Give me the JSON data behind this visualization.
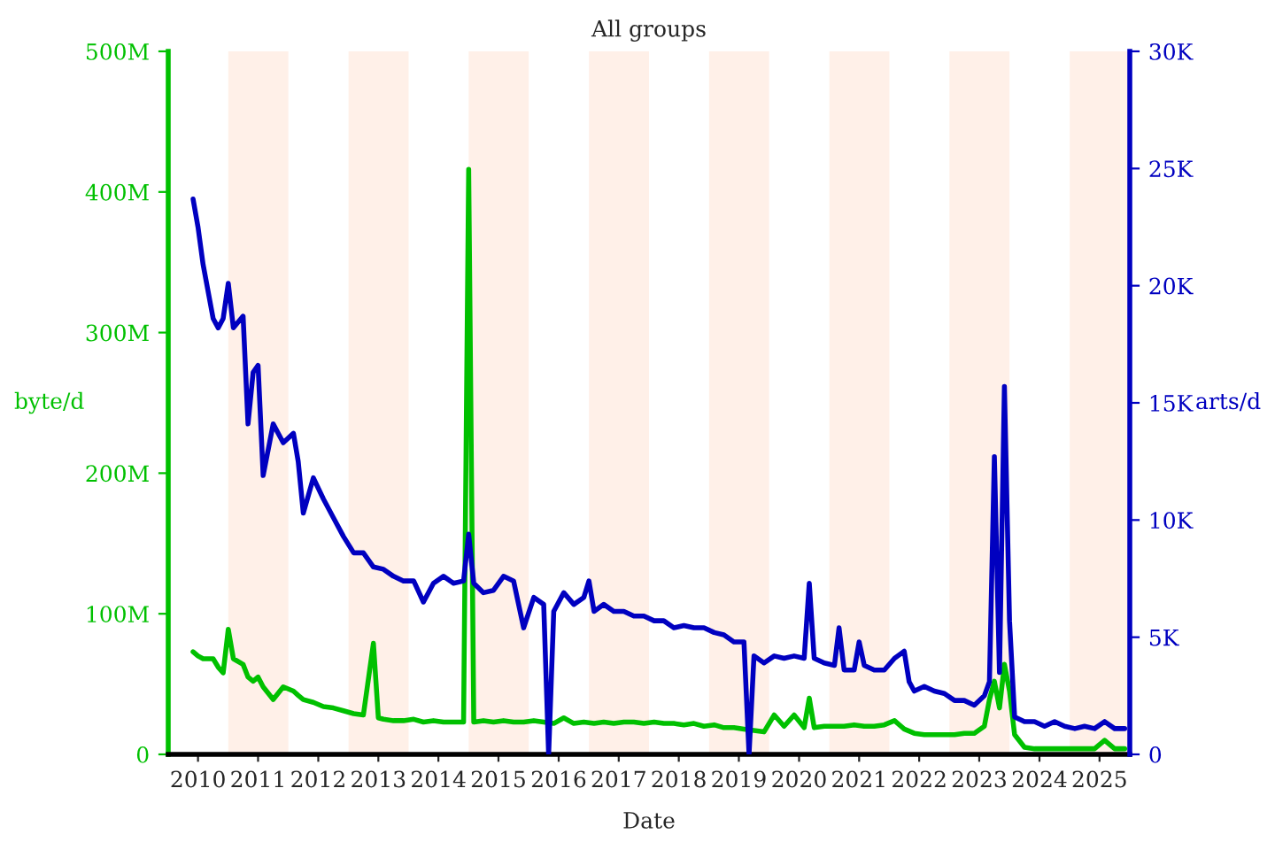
{
  "chart_data": {
    "type": "line",
    "title": "All groups",
    "xlabel": "Date",
    "ylabel": "byte/d",
    "y2label": "arts/d",
    "xlim": [
      "2010-01-01",
      "2026-01-01"
    ],
    "xticks": [
      {
        "value": "2010-07-01",
        "label": "2010"
      },
      {
        "value": "2011-07-01",
        "label": "2011"
      },
      {
        "value": "2012-07-01",
        "label": "2012"
      },
      {
        "value": "2013-07-01",
        "label": "2013"
      },
      {
        "value": "2014-07-01",
        "label": "2014"
      },
      {
        "value": "2015-07-01",
        "label": "2015"
      },
      {
        "value": "2016-07-01",
        "label": "2016"
      },
      {
        "value": "2017-07-01",
        "label": "2017"
      },
      {
        "value": "2018-07-01",
        "label": "2018"
      },
      {
        "value": "2019-07-01",
        "label": "2019"
      },
      {
        "value": "2020-07-01",
        "label": "2020"
      },
      {
        "value": "2021-07-01",
        "label": "2021"
      },
      {
        "value": "2022-07-01",
        "label": "2022"
      },
      {
        "value": "2023-07-01",
        "label": "2023"
      },
      {
        "value": "2024-07-01",
        "label": "2024"
      },
      {
        "value": "2025-07-01",
        "label": "2025"
      }
    ],
    "ylim": [
      0,
      500000000
    ],
    "yticks": [
      0,
      {
        "value": 100000000,
        "label": "100M"
      },
      {
        "value": 200000000,
        "label": "200M"
      },
      {
        "value": 300000000,
        "label": "300M"
      },
      {
        "value": 400000000,
        "label": "400M"
      },
      {
        "value": 500000000,
        "label": "500M"
      }
    ],
    "y2lim": [
      0,
      30000
    ],
    "y2ticks": [
      0,
      {
        "value": 5000,
        "label": "5K"
      },
      {
        "value": 10000,
        "label": "10K"
      },
      {
        "value": 15000,
        "label": "15K"
      },
      {
        "value": 20000,
        "label": "20K"
      },
      {
        "value": 25000,
        "label": "25K"
      },
      {
        "value": 30000,
        "label": "30K"
      }
    ],
    "grid": false,
    "legend": false,
    "bands": [
      {
        "axis": "x",
        "from": "2011-01-01",
        "to": "2012-01-01",
        "color": "#fff0e8"
      },
      {
        "axis": "x",
        "from": "2013-01-01",
        "to": "2014-01-01",
        "color": "#fff0e8"
      },
      {
        "axis": "x",
        "from": "2015-01-01",
        "to": "2016-01-01",
        "color": "#fff0e8"
      },
      {
        "axis": "x",
        "from": "2017-01-01",
        "to": "2018-01-01",
        "color": "#fff0e8"
      },
      {
        "axis": "x",
        "from": "2019-01-01",
        "to": "2020-01-01",
        "color": "#fff0e8"
      },
      {
        "axis": "x",
        "from": "2021-01-01",
        "to": "2022-01-01",
        "color": "#fff0e8"
      },
      {
        "axis": "x",
        "from": "2023-01-01",
        "to": "2024-01-01",
        "color": "#fff0e8"
      },
      {
        "axis": "x",
        "from": "2025-01-01",
        "to": "2026-01-01",
        "color": "#fff0e8"
      }
    ],
    "series": [
      {
        "color": "#00c000",
        "x": [
          "2010-06",
          "2010-07",
          "2010-08",
          "2010-10",
          "2010-11",
          "2010-12",
          "2011-01",
          "2011-02",
          "2011-04",
          "2011-05",
          "2011-06",
          "2011-07",
          "2011-08",
          "2011-10",
          "2011-12",
          "2012-02",
          "2012-03",
          "2012-04",
          "2012-06",
          "2012-08",
          "2012-10",
          "2012-12",
          "2013-02",
          "2013-04",
          "2013-06",
          "2013-07",
          "2013-08",
          "2013-10",
          "2013-12",
          "2014-02",
          "2014-04",
          "2014-06",
          "2014-08",
          "2014-10",
          "2014-12",
          "2015-01",
          "2015-02",
          "2015-04",
          "2015-06",
          "2015-08",
          "2015-10",
          "2015-12",
          "2016-02",
          "2016-04",
          "2016-06",
          "2016-08",
          "2016-10",
          "2016-12",
          "2017-02",
          "2017-04",
          "2017-06",
          "2017-08",
          "2017-10",
          "2017-12",
          "2018-02",
          "2018-04",
          "2018-06",
          "2018-08",
          "2018-10",
          "2018-12",
          "2019-02",
          "2019-04",
          "2019-06",
          "2019-08",
          "2019-10",
          "2019-12",
          "2020-02",
          "2020-04",
          "2020-06",
          "2020-08",
          "2020-09",
          "2020-10",
          "2020-12",
          "2021-02",
          "2021-04",
          "2021-06",
          "2021-08",
          "2021-10",
          "2021-12",
          "2022-02",
          "2022-04",
          "2022-06",
          "2022-08",
          "2022-10",
          "2022-12",
          "2023-02",
          "2023-04",
          "2023-06",
          "2023-08",
          "2023-09",
          "2023-10",
          "2023-11",
          "2023-12",
          "2024-01",
          "2024-02",
          "2024-04",
          "2024-06",
          "2024-08",
          "2024-10",
          "2024-12",
          "2025-02",
          "2025-04",
          "2025-06",
          "2025-08",
          "2025-10",
          "2025-12"
        ],
        "values": [
          73000000,
          70000000,
          68000000,
          68000000,
          62000000,
          58000000,
          89000000,
          68000000,
          64000000,
          55000000,
          52000000,
          55000000,
          48000000,
          39000000,
          48000000,
          45000000,
          42000000,
          39000000,
          37000000,
          34000000,
          33000000,
          31000000,
          29000000,
          28000000,
          79000000,
          26000000,
          25000000,
          24000000,
          24000000,
          25000000,
          23000000,
          24000000,
          23000000,
          23000000,
          23000000,
          416000000,
          23000000,
          24000000,
          23000000,
          24000000,
          23000000,
          23000000,
          24000000,
          23000000,
          22000000,
          26000000,
          22000000,
          23000000,
          22000000,
          23000000,
          22000000,
          23000000,
          23000000,
          22000000,
          23000000,
          22000000,
          22000000,
          21000000,
          22000000,
          20000000,
          21000000,
          19000000,
          19000000,
          18000000,
          17000000,
          16000000,
          28000000,
          20000000,
          28000000,
          19000000,
          40000000,
          19000000,
          20000000,
          20000000,
          20000000,
          21000000,
          20000000,
          20000000,
          21000000,
          24000000,
          18000000,
          15000000,
          14000000,
          14000000,
          14000000,
          14000000,
          15000000,
          15000000,
          20000000,
          39000000,
          52000000,
          33000000,
          64000000,
          45000000,
          14000000,
          5000000,
          4000000,
          4000000,
          4000000,
          4000000,
          4000000,
          4000000,
          4000000,
          10000000,
          4000000,
          4000000
        ]
      },
      {
        "color": "#0000c0",
        "axis": "y2",
        "x": [
          "2010-06",
          "2010-07",
          "2010-08",
          "2010-10",
          "2010-11",
          "2010-12",
          "2011-01",
          "2011-02",
          "2011-04",
          "2011-05",
          "2011-06",
          "2011-07",
          "2011-08",
          "2011-10",
          "2011-12",
          "2012-02",
          "2012-03",
          "2012-04",
          "2012-06",
          "2012-08",
          "2012-10",
          "2012-12",
          "2013-02",
          "2013-04",
          "2013-06",
          "2013-08",
          "2013-10",
          "2013-12",
          "2014-02",
          "2014-04",
          "2014-06",
          "2014-08",
          "2014-10",
          "2014-12",
          "2015-01",
          "2015-02",
          "2015-04",
          "2015-06",
          "2015-08",
          "2015-10",
          "2015-12",
          "2016-02",
          "2016-04",
          "2016-05",
          "2016-06",
          "2016-08",
          "2016-10",
          "2016-12",
          "2017-01",
          "2017-02",
          "2017-04",
          "2017-06",
          "2017-08",
          "2017-10",
          "2017-12",
          "2018-02",
          "2018-04",
          "2018-06",
          "2018-08",
          "2018-10",
          "2018-12",
          "2019-02",
          "2019-04",
          "2019-06",
          "2019-08",
          "2019-09",
          "2019-10",
          "2019-12",
          "2020-02",
          "2020-04",
          "2020-06",
          "2020-08",
          "2020-09",
          "2020-10",
          "2020-12",
          "2021-02",
          "2021-03",
          "2021-04",
          "2021-06",
          "2021-07",
          "2021-08",
          "2021-10",
          "2021-12",
          "2022-02",
          "2022-04",
          "2022-05",
          "2022-06",
          "2022-08",
          "2022-10",
          "2022-12",
          "2023-02",
          "2023-04",
          "2023-06",
          "2023-08",
          "2023-09",
          "2023-10",
          "2023-11",
          "2023-12",
          "2024-01",
          "2024-02",
          "2024-04",
          "2024-06",
          "2024-08",
          "2024-10",
          "2024-12",
          "2025-02",
          "2025-04",
          "2025-06",
          "2025-08",
          "2025-10",
          "2025-12"
        ],
        "values": [
          23700,
          22500,
          20900,
          18600,
          18200,
          18600,
          20100,
          18200,
          18700,
          14100,
          16300,
          16600,
          11900,
          14100,
          13300,
          13700,
          12500,
          10300,
          11800,
          10900,
          10100,
          9300,
          8600,
          8600,
          8000,
          7900,
          7600,
          7400,
          7400,
          6500,
          7300,
          7600,
          7300,
          7400,
          9400,
          7300,
          6900,
          7000,
          7600,
          7400,
          5400,
          6700,
          6400,
          0,
          6100,
          6900,
          6400,
          6700,
          7400,
          6100,
          6400,
          6100,
          6100,
          5900,
          5900,
          5700,
          5700,
          5400,
          5500,
          5400,
          5400,
          5200,
          5100,
          4800,
          4800,
          0,
          4200,
          3900,
          4200,
          4100,
          4200,
          4100,
          7300,
          4100,
          3900,
          3800,
          5400,
          3600,
          3600,
          4800,
          3800,
          3600,
          3600,
          4100,
          4400,
          3100,
          2700,
          2900,
          2700,
          2600,
          2300,
          2300,
          2100,
          2500,
          3100,
          12700,
          3500,
          15700,
          5700,
          1600,
          1400,
          1400,
          1200,
          1400,
          1200,
          1100,
          1200,
          1100,
          1400,
          1100,
          1100
        ]
      }
    ]
  }
}
